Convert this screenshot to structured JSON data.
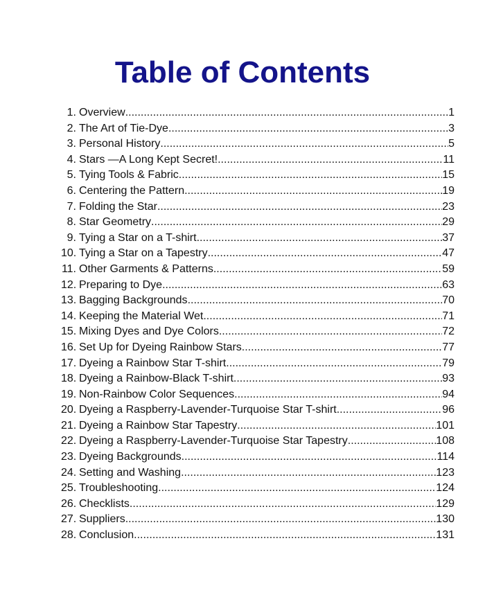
{
  "heading": "Table of Contents",
  "title_color": "#14148a",
  "entries": [
    {
      "num": "1.",
      "title": "Overview",
      "page": "1"
    },
    {
      "num": "2.",
      "title": "The Art of Tie-Dye",
      "page": "3"
    },
    {
      "num": "3.",
      "title": "Personal History",
      "page": "5"
    },
    {
      "num": "4.",
      "title": "Stars —A Long Kept Secret!",
      "page": "11"
    },
    {
      "num": "5.",
      "title": "Tying Tools & Fabric",
      "page": "15"
    },
    {
      "num": "6.",
      "title": "Centering the Pattern",
      "page": "19"
    },
    {
      "num": "7.",
      "title": "Folding the Star",
      "page": "23"
    },
    {
      "num": "8.",
      "title": "Star Geometry",
      "page": "29"
    },
    {
      "num": "9.",
      "title": "Tying a Star on a T-shirt",
      "page": "37"
    },
    {
      "num": "10.",
      "title": "Tying a Star on a Tapestry",
      "page": "47"
    },
    {
      "num": "11.",
      "title": "Other Garments & Patterns",
      "page": "59"
    },
    {
      "num": "12.",
      "title": "Preparing to Dye",
      "page": "63"
    },
    {
      "num": "13.",
      "title": "Bagging Backgrounds",
      "page": "70"
    },
    {
      "num": "14.",
      "title": "Keeping the Material Wet",
      "page": "71"
    },
    {
      "num": "15.",
      "title": "Mixing Dyes and Dye Colors",
      "page": "72"
    },
    {
      "num": "16.",
      "title": "Set Up for Dyeing Rainbow Stars",
      "page": "77"
    },
    {
      "num": "17.",
      "title": "Dyeing a Rainbow Star T-shirt",
      "page": "79"
    },
    {
      "num": "18.",
      "title": "Dyeing a Rainbow-Black T-shirt",
      "page": "93"
    },
    {
      "num": "19.",
      "title": "Non-Rainbow Color Sequences",
      "page": "94"
    },
    {
      "num": "20.",
      "title": "Dyeing a Raspberry-Lavender-Turquoise Star T-shirt",
      "page": "96"
    },
    {
      "num": "21.",
      "title": "Dyeing a Rainbow Star Tapestry",
      "page": "101"
    },
    {
      "num": "22.",
      "title": "Dyeing a Raspberry-Lavender-Turquoise Star Tapestry",
      "page": "108"
    },
    {
      "num": "23.",
      "title": "Dyeing Backgrounds",
      "page": "114"
    },
    {
      "num": "24.",
      "title": "Setting and Washing",
      "page": "123"
    },
    {
      "num": "25.",
      "title": "Troubleshooting",
      "page": "124"
    },
    {
      "num": "26.",
      "title": "Checklists",
      "page": "129"
    },
    {
      "num": "27.",
      "title": "Suppliers",
      "page": "130"
    },
    {
      "num": "28.",
      "title": "Conclusion",
      "page": "131"
    }
  ]
}
